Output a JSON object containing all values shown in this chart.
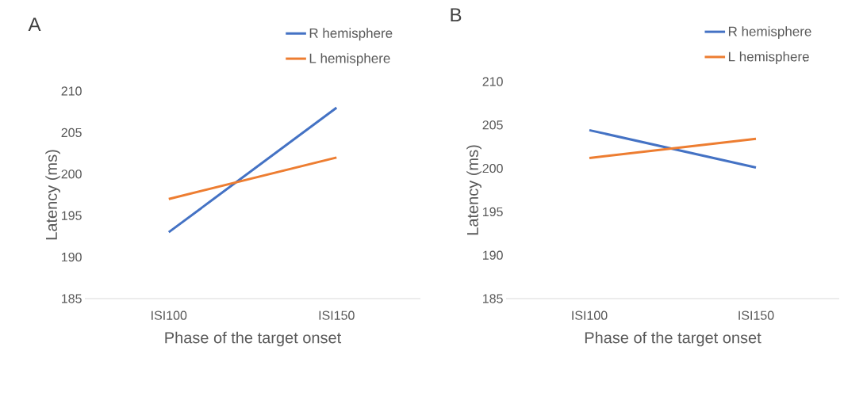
{
  "chart_data": [
    {
      "type": "line",
      "title": "A",
      "xlabel": "Phase of the target onset",
      "ylabel": "Latency (ms)",
      "categories": [
        "ISI100",
        "ISI150"
      ],
      "series": [
        {
          "name": "R hemisphere",
          "color": "#4472c4",
          "values": [
            193,
            208
          ]
        },
        {
          "name": "L hemisphere",
          "color": "#ed7d31",
          "values": [
            197,
            202
          ]
        }
      ],
      "ylim": [
        185,
        210
      ],
      "yticks": [
        185,
        190,
        195,
        200,
        205,
        210
      ],
      "legend": "top right",
      "marker": "none",
      "line_style": "solid"
    },
    {
      "type": "line",
      "title": "B",
      "xlabel": "Phase of the target onset",
      "ylabel": "Latency (ms)",
      "categories": [
        "ISI100",
        "ISI150"
      ],
      "series": [
        {
          "name": "R hemisphere",
          "color": "#4472c4",
          "values": [
            204.4,
            200.1
          ]
        },
        {
          "name": "L hemisphere",
          "color": "#ed7d31",
          "values": [
            201.2,
            203.4
          ]
        }
      ],
      "ylim": [
        185,
        210
      ],
      "yticks": [
        185,
        190,
        195,
        200,
        205,
        210
      ],
      "legend": "top right",
      "marker": "none",
      "line_style": "solid"
    }
  ]
}
